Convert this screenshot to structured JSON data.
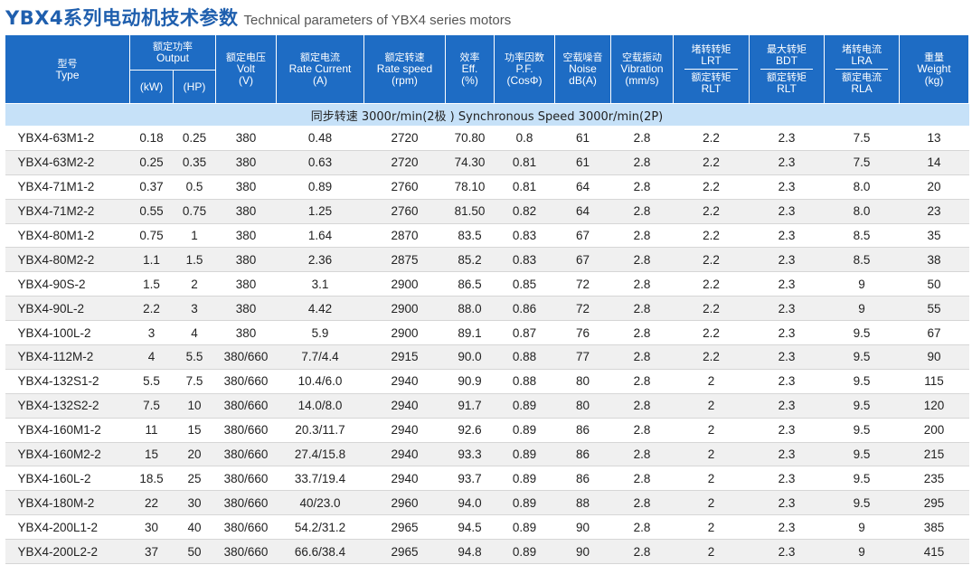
{
  "title": {
    "cn": "YBX4系列电动机技术参数",
    "en": "Technical parameters of YBX4 series motors"
  },
  "headers": {
    "type": {
      "cn": "型号",
      "en": "Type"
    },
    "output": {
      "cn": "额定功率",
      "en": "Output",
      "kw": "(kW)",
      "hp": "(HP)"
    },
    "volt": {
      "cn": "额定电压",
      "en": "Volt",
      "unit": "(V)"
    },
    "current": {
      "cn": "额定电流",
      "en": "Rate Current",
      "unit": "(A)"
    },
    "speed": {
      "cn": "额定转速",
      "en": "Rate speed",
      "unit": "(rpm)"
    },
    "eff": {
      "cn": "效率",
      "en": "Eff.",
      "unit": "(%)"
    },
    "pf": {
      "cn": "功率因数",
      "en": "P.F.",
      "unit": "(CosΦ)"
    },
    "noise": {
      "cn": "空载噪音",
      "en": "Noise",
      "unit": "dB(A)"
    },
    "vibration": {
      "cn": "空载振动",
      "en": "Vibration",
      "unit": "(mm/s)"
    },
    "lrt": {
      "cn": "堵转转矩",
      "en": "LRT",
      "cn2": "额定转矩",
      "en2": "RLT"
    },
    "bdt": {
      "cn": "最大转矩",
      "en": "BDT",
      "cn2": "额定转矩",
      "en2": "RLT"
    },
    "lra": {
      "cn": "堵转电流",
      "en": "LRA",
      "cn2": "额定电流",
      "en2": "RLA"
    },
    "weight": {
      "cn": "重量",
      "en": "Weight",
      "unit": "(kg)"
    }
  },
  "group_label": "同步转速 3000r/min(2极 )   Synchronous Speed 3000r/min(2P)",
  "rows": [
    [
      "YBX4-63M1-2",
      "0.18",
      "0.25",
      "380",
      "0.48",
      "2720",
      "70.80",
      "0.8",
      "61",
      "2.8",
      "2.2",
      "2.3",
      "7.5",
      "13"
    ],
    [
      "YBX4-63M2-2",
      "0.25",
      "0.35",
      "380",
      "0.63",
      "2720",
      "74.30",
      "0.81",
      "61",
      "2.8",
      "2.2",
      "2.3",
      "7.5",
      "14"
    ],
    [
      "YBX4-71M1-2",
      "0.37",
      "0.5",
      "380",
      "0.89",
      "2760",
      "78.10",
      "0.81",
      "64",
      "2.8",
      "2.2",
      "2.3",
      "8.0",
      "20"
    ],
    [
      "YBX4-71M2-2",
      "0.55",
      "0.75",
      "380",
      "1.25",
      "2760",
      "81.50",
      "0.82",
      "64",
      "2.8",
      "2.2",
      "2.3",
      "8.0",
      "23"
    ],
    [
      "YBX4-80M1-2",
      "0.75",
      "1",
      "380",
      "1.64",
      "2870",
      "83.5",
      "0.83",
      "67",
      "2.8",
      "2.2",
      "2.3",
      "8.5",
      "35"
    ],
    [
      "YBX4-80M2-2",
      "1.1",
      "1.5",
      "380",
      "2.36",
      "2875",
      "85.2",
      "0.83",
      "67",
      "2.8",
      "2.2",
      "2.3",
      "8.5",
      "38"
    ],
    [
      "YBX4-90S-2",
      "1.5",
      "2",
      "380",
      "3.1",
      "2900",
      "86.5",
      "0.85",
      "72",
      "2.8",
      "2.2",
      "2.3",
      "9",
      "50"
    ],
    [
      "YBX4-90L-2",
      "2.2",
      "3",
      "380",
      "4.42",
      "2900",
      "88.0",
      "0.86",
      "72",
      "2.8",
      "2.2",
      "2.3",
      "9",
      "55"
    ],
    [
      "YBX4-100L-2",
      "3",
      "4",
      "380",
      "5.9",
      "2900",
      "89.1",
      "0.87",
      "76",
      "2.8",
      "2.2",
      "2.3",
      "9.5",
      "67"
    ],
    [
      "YBX4-112M-2",
      "4",
      "5.5",
      "380/660",
      "7.7/4.4",
      "2915",
      "90.0",
      "0.88",
      "77",
      "2.8",
      "2.2",
      "2.3",
      "9.5",
      "90"
    ],
    [
      "YBX4-132S1-2",
      "5.5",
      "7.5",
      "380/660",
      "10.4/6.0",
      "2940",
      "90.9",
      "0.88",
      "80",
      "2.8",
      "2",
      "2.3",
      "9.5",
      "115"
    ],
    [
      "YBX4-132S2-2",
      "7.5",
      "10",
      "380/660",
      "14.0/8.0",
      "2940",
      "91.7",
      "0.89",
      "80",
      "2.8",
      "2",
      "2.3",
      "9.5",
      "120"
    ],
    [
      "YBX4-160M1-2",
      "11",
      "15",
      "380/660",
      "20.3/11.7",
      "2940",
      "92.6",
      "0.89",
      "86",
      "2.8",
      "2",
      "2.3",
      "9.5",
      "200"
    ],
    [
      "YBX4-160M2-2",
      "15",
      "20",
      "380/660",
      "27.4/15.8",
      "2940",
      "93.3",
      "0.89",
      "86",
      "2.8",
      "2",
      "2.3",
      "9.5",
      "215"
    ],
    [
      "YBX4-160L-2",
      "18.5",
      "25",
      "380/660",
      "33.7/19.4",
      "2940",
      "93.7",
      "0.89",
      "86",
      "2.8",
      "2",
      "2.3",
      "9.5",
      "235"
    ],
    [
      "YBX4-180M-2",
      "22",
      "30",
      "380/660",
      "40/23.0",
      "2960",
      "94.0",
      "0.89",
      "88",
      "2.8",
      "2",
      "2.3",
      "9.5",
      "295"
    ],
    [
      "YBX4-200L1-2",
      "30",
      "40",
      "380/660",
      "54.2/31.2",
      "2965",
      "94.5",
      "0.89",
      "90",
      "2.8",
      "2",
      "2.3",
      "9",
      "385"
    ],
    [
      "YBX4-200L2-2",
      "37",
      "50",
      "380/660",
      "66.6/38.4",
      "2965",
      "94.8",
      "0.89",
      "90",
      "2.8",
      "2",
      "2.3",
      "9",
      "415"
    ]
  ]
}
